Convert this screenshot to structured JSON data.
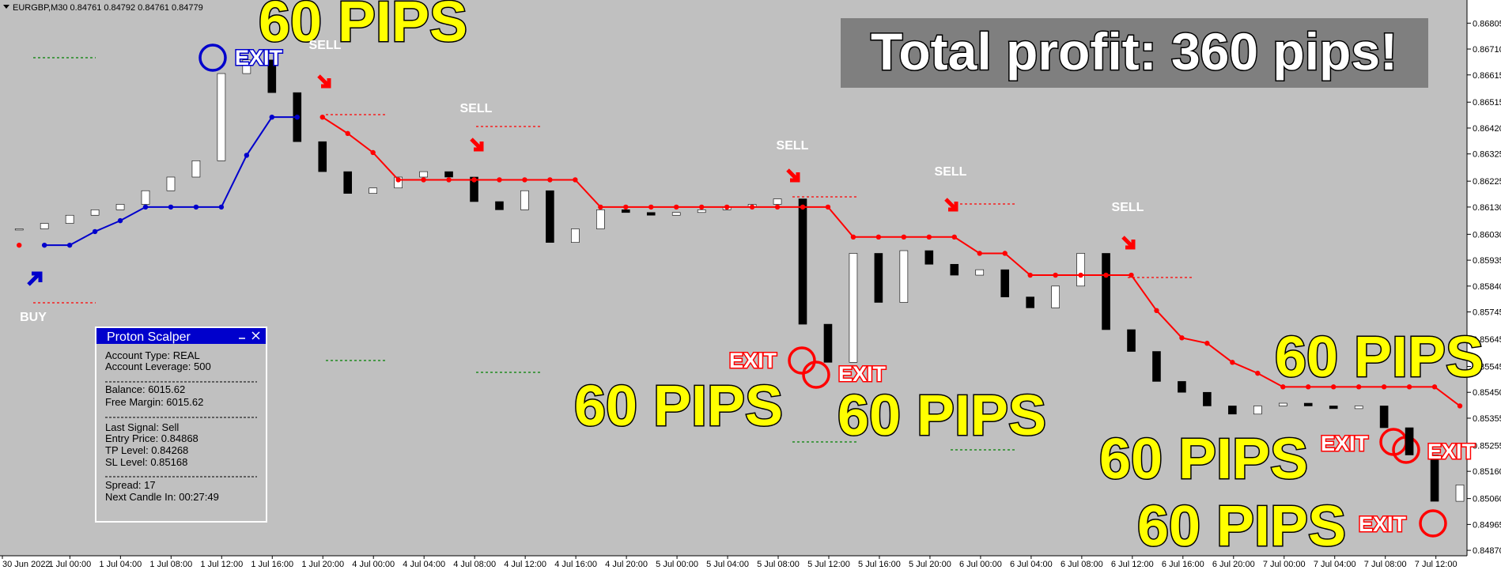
{
  "chart_data": {
    "type": "candlestick",
    "title": "EURGBP,M30  0.84761 0.84792 0.84761 0.84779",
    "color_up": "#ffffff",
    "color_down": "#000000",
    "values": [
      0.8605,
      0.8607,
      0.861,
      0.8612,
      0.8614,
      0.8619,
      0.8624,
      0.863,
      0.8662,
      0.8667,
      0.8655,
      0.8637,
      0.8626,
      0.8618,
      0.862,
      0.8624,
      0.8626,
      0.8624,
      0.8615,
      0.8612,
      0.8619,
      0.86,
      0.8605,
      0.8612,
      0.8611,
      0.861,
      0.8611,
      0.8612,
      0.8613,
      0.8614,
      0.8616,
      0.857,
      0.8556,
      0.8596,
      0.8578,
      0.8597,
      0.8592,
      0.8588,
      0.859,
      0.858,
      0.8576,
      0.8584,
      0.8596,
      0.8568,
      0.856,
      0.8549,
      0.8545,
      0.854,
      0.8537,
      0.854,
      0.8541,
      0.854,
      0.8539,
      0.854,
      0.8532,
      0.8522,
      0.8505,
      0.8511
    ],
    "series": [
      {
        "color": "#ff0000",
        "values": [
          0.8599,
          null,
          null,
          null,
          null,
          null,
          null,
          null,
          null,
          null,
          null,
          null,
          0.8646,
          0.864,
          0.8633,
          0.8623,
          0.8623,
          0.8623,
          0.8623,
          0.8623,
          0.8623,
          0.8623,
          0.8623,
          0.8613,
          0.8613,
          0.8613,
          0.8613,
          0.8613,
          0.8613,
          0.8613,
          0.8613,
          0.8613,
          0.8613,
          0.8602,
          0.8602,
          0.8602,
          0.8602,
          0.8602,
          0.8596,
          0.8596,
          0.8588,
          0.8588,
          0.8588,
          0.8588,
          0.8588,
          0.8575,
          0.8565,
          0.8563,
          0.8556,
          0.8552,
          0.8547,
          0.8547,
          0.8547,
          0.8547,
          0.8547,
          0.8547,
          0.8547,
          0.854
        ]
      },
      {
        "color": "#0000cc",
        "values": [
          null,
          0.8599,
          0.8599,
          0.8604,
          0.8608,
          0.8613,
          0.8613,
          0.8613,
          0.8613,
          0.8632,
          0.8646,
          0.8646,
          null,
          null,
          null,
          null,
          null,
          null,
          null,
          null,
          null,
          null,
          null,
          null,
          null,
          null,
          null,
          null,
          null,
          null,
          null,
          null,
          null,
          null,
          null,
          null,
          null,
          null,
          null,
          null,
          null,
          null,
          null,
          null,
          null,
          null,
          null,
          null,
          null,
          null,
          null,
          null,
          null,
          null,
          null,
          null,
          null,
          null
        ]
      }
    ],
    "ylim": [
      0.8485,
      0.8689
    ],
    "yticks": [
      0.86805,
      {
        "value": 0.8671,
        "label": "0.86710"
      },
      0.86615,
      0.86515,
      {
        "value": 0.8642,
        "label": "0.86420"
      },
      0.86325,
      0.86225,
      {
        "value": 0.8613,
        "label": "0.86130"
      },
      {
        "value": 0.8603,
        "label": "0.86030"
      },
      0.85935,
      {
        "value": 0.8584,
        "label": "0.85840"
      },
      0.85745,
      0.85645,
      0.85545,
      {
        "value": 0.8545,
        "label": "0.85450"
      },
      0.85355,
      0.85255,
      {
        "value": 0.8516,
        "label": "0.85160"
      },
      {
        "value": 0.8506,
        "label": "0.85060"
      },
      0.84965,
      {
        "value": 0.8487,
        "label": "0.84870"
      }
    ],
    "xtick_labels": [
      "30 Jun 2022",
      "1 Jul 00:00",
      "1 Jul 04:00",
      "1 Jul 08:00",
      "1 Jul 12:00",
      "1 Jul 16:00",
      "1 Jul 20:00",
      "4 Jul 00:00",
      "4 Jul 04:00",
      "4 Jul 08:00",
      "4 Jul 12:00",
      "4 Jul 16:00",
      "4 Jul 20:00",
      "5 Jul 00:00",
      "5 Jul 04:00",
      "5 Jul 08:00",
      "5 Jul 12:00",
      "5 Jul 16:00",
      "5 Jul 20:00",
      "6 Jul 00:00",
      "6 Jul 04:00",
      "6 Jul 08:00",
      "6 Jul 12:00",
      "6 Jul 16:00",
      "6 Jul 20:00",
      "7 Jul 00:00",
      "7 Jul 04:00",
      "7 Jul 08:00",
      "7 Jul 12:00"
    ],
    "annotations": [
      "60 PIPS",
      "60 PIPS",
      "60 PIPS",
      "60 PIPS",
      "60 PIPS",
      "60 PIPS",
      "EXIT",
      "EXIT",
      "EXIT",
      "EXIT",
      "EXIT",
      "EXIT",
      "SELL",
      "SELL",
      "SELL",
      "SELL",
      "SELL",
      "BUY"
    ],
    "banner": "Total profit: 360 pips!"
  },
  "panel": {
    "title": "Proton Scalper",
    "lines": [
      "Account Type: REAL",
      "Account Leverage: 500",
      "Balance: 6015.62",
      "Free Margin: 6015.62",
      "Last Signal: Sell",
      "Entry Price: 0.84868",
      "TP Level: 0.84268",
      "SL Level: 0.85168",
      "Spread: 17",
      "Next Candle In: 00:27:49"
    ]
  }
}
